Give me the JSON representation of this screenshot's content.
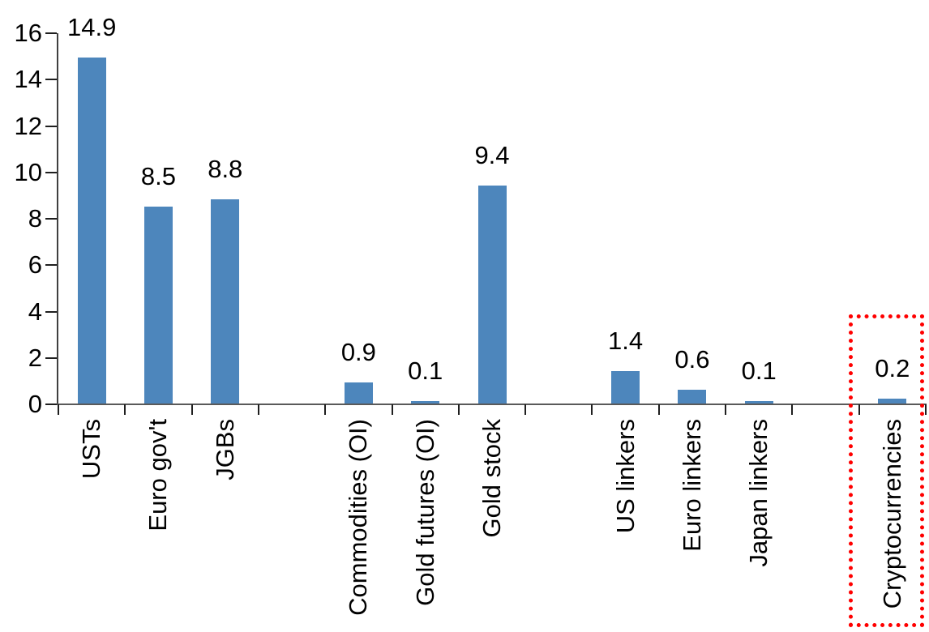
{
  "chart_data": {
    "type": "bar",
    "title": "",
    "xlabel": "",
    "ylabel": "",
    "categories": [
      "USTs",
      "Euro gov't",
      "JGBs",
      "Commodities (OI)",
      "Gold futures (OI)",
      "Gold stock",
      "US linkers",
      "Euro linkers",
      "Japan linkers",
      "Cryptocurrencies"
    ],
    "values": [
      14.9,
      8.5,
      8.8,
      0.9,
      0.1,
      9.4,
      1.4,
      0.6,
      0.1,
      0.2
    ],
    "value_labels": [
      "14.9",
      "8.5",
      "8.8",
      "0.9",
      "0.1",
      "9.4",
      "1.4",
      "0.6",
      "0.1",
      "0.2"
    ],
    "slot_indices": [
      0,
      1,
      2,
      4,
      5,
      6,
      8,
      9,
      10,
      12
    ],
    "total_slots": 13,
    "y_ticks": [
      "0",
      "2",
      "4",
      "6",
      "8",
      "10",
      "12",
      "14",
      "16"
    ],
    "y_tick_values": [
      0,
      2,
      4,
      6,
      8,
      10,
      12,
      14,
      16
    ],
    "ylim": [
      0,
      16
    ],
    "grid": false,
    "legend": false,
    "bar_color": "#4D86BC",
    "axis_color_x": "#5a5a5a",
    "axis_color_y": "#3f3f3f",
    "tick_color": "#1f1f1f",
    "text_color": "#000000",
    "highlight": {
      "category": "Cryptocurrencies",
      "style": "dotted-box",
      "box_color": "#FF0000"
    }
  }
}
